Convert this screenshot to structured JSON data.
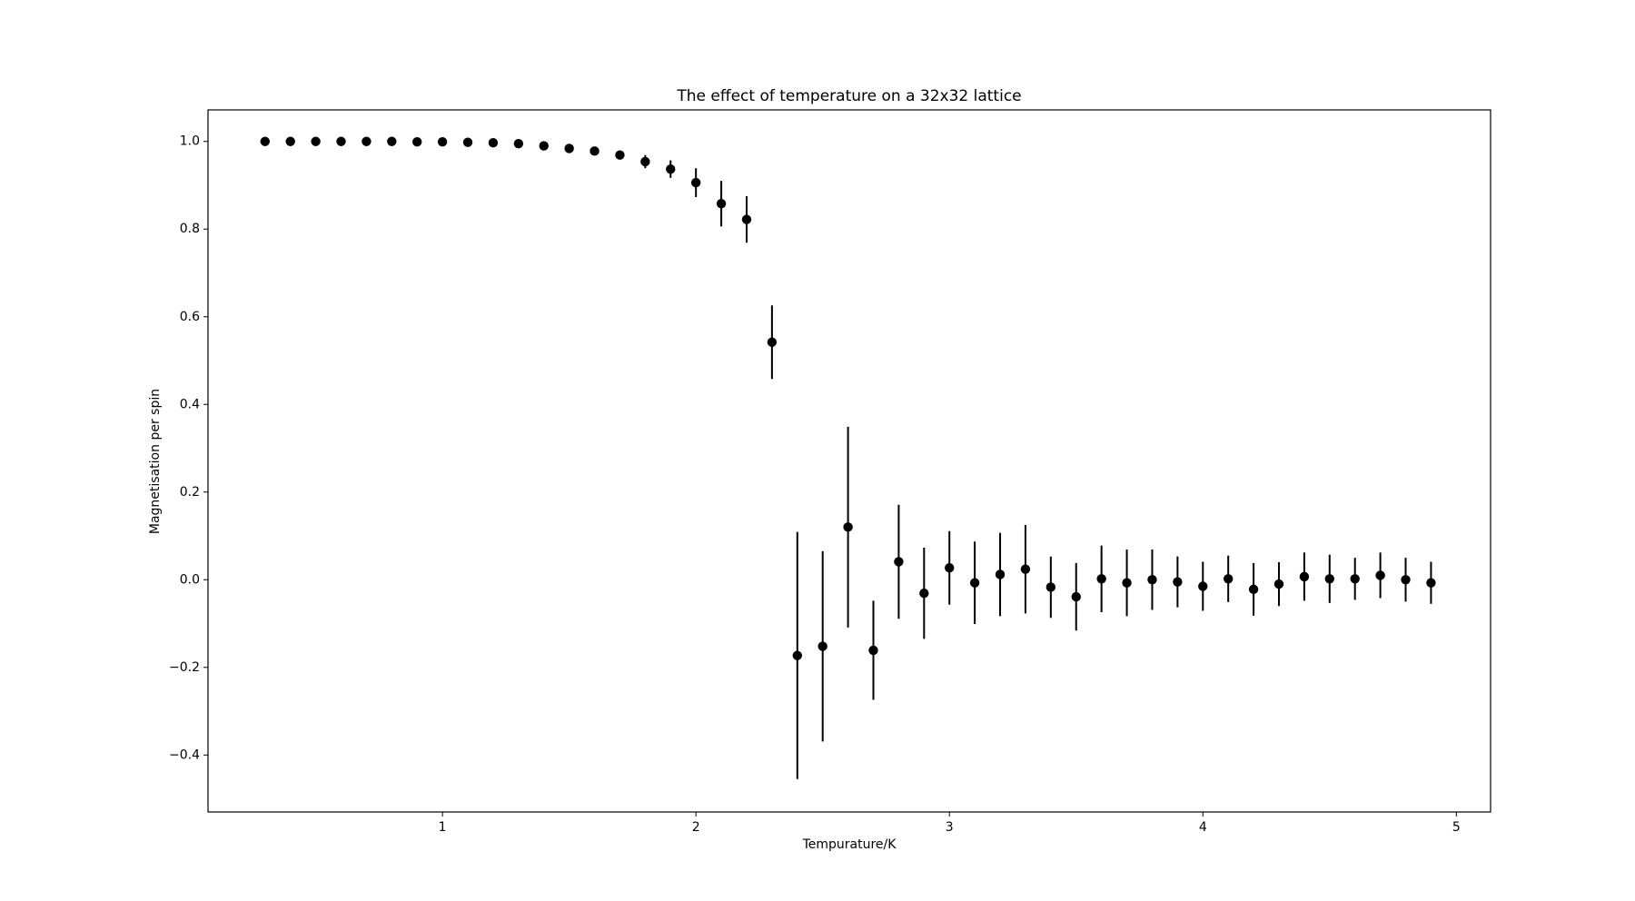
{
  "chart_data": {
    "type": "errorbar",
    "title": "The effect of temperature on a 32x32 lattice",
    "x_label": "Tempurature/K",
    "y_label": "Magnetisation per spin",
    "color": "#000000",
    "x": [
      0.3,
      0.4,
      0.5,
      0.6,
      0.7,
      0.8,
      0.9,
      1.0,
      1.1,
      1.2,
      1.3,
      1.4,
      1.5,
      1.6,
      1.7,
      1.8,
      1.9,
      2.0,
      2.1,
      2.2,
      2.3,
      2.4,
      2.5,
      2.6,
      2.7,
      2.8,
      2.9,
      3.0,
      3.1,
      3.2,
      3.3,
      3.4,
      3.5,
      3.6,
      3.7,
      3.8,
      3.9,
      4.0,
      4.1,
      4.2,
      4.3,
      4.4,
      4.5,
      4.6,
      4.7,
      4.8,
      4.9
    ],
    "values": [
      1.0,
      1.0,
      1.0,
      1.0,
      1.0,
      1.0,
      0.999,
      0.999,
      0.998,
      0.997,
      0.995,
      0.99,
      0.984,
      0.978,
      0.969,
      0.954,
      0.937,
      0.906,
      0.858,
      0.822,
      0.542,
      -0.173,
      -0.152,
      0.12,
      -0.161,
      0.041,
      -0.031,
      0.027,
      -0.007,
      0.012,
      0.024,
      -0.017,
      -0.039,
      0.002,
      -0.007,
      0.0,
      -0.005,
      -0.015,
      0.002,
      -0.022,
      -0.01,
      0.007,
      0.002,
      0.002,
      0.01,
      0.0,
      -0.007
    ],
    "errors": [
      0.0,
      0.0,
      0.0,
      0.0,
      0.0,
      0.001,
      0.001,
      0.001,
      0.001,
      0.002,
      0.002,
      0.003,
      0.004,
      0.006,
      0.01,
      0.015,
      0.02,
      0.033,
      0.052,
      0.053,
      0.084,
      0.282,
      0.217,
      0.229,
      0.113,
      0.13,
      0.104,
      0.084,
      0.094,
      0.095,
      0.101,
      0.07,
      0.077,
      0.076,
      0.076,
      0.069,
      0.058,
      0.056,
      0.053,
      0.06,
      0.05,
      0.055,
      0.055,
      0.048,
      0.052,
      0.05,
      0.048
    ],
    "xlim": [
      0.075,
      5.135
    ],
    "ylim": [
      -0.53,
      1.072
    ],
    "xticks": [
      1,
      2,
      3,
      4,
      5
    ],
    "yticks": [
      {
        "value": -0.4,
        "label": "−0.4"
      },
      {
        "value": -0.2,
        "label": "−0.2"
      },
      {
        "value": 0,
        "label": "0.0"
      },
      0.2,
      0.4,
      0.6,
      0.8,
      {
        "value": 1,
        "label": "1.0"
      }
    ]
  }
}
